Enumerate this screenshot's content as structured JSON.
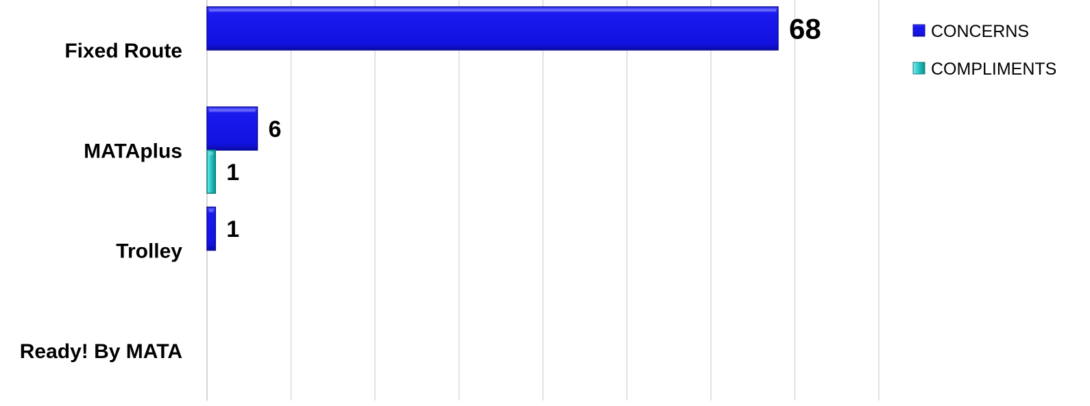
{
  "chart_data": {
    "type": "bar",
    "orientation": "horizontal",
    "categories": [
      "Fixed Route",
      "MATAplus",
      "Trolley",
      "Ready! By MATA"
    ],
    "series": [
      {
        "name": "CONCERNS",
        "values": [
          68,
          6,
          1,
          0
        ],
        "color": "#1212e6"
      },
      {
        "name": "COMPLIMENTS",
        "values": [
          0,
          1,
          0,
          0
        ],
        "color": "#20c8c8"
      }
    ],
    "data_labels": [
      {
        "category": "Fixed Route",
        "series": "CONCERNS",
        "text": "68"
      },
      {
        "category": "MATAplus",
        "series": "CONCERNS",
        "text": "6"
      },
      {
        "category": "MATAplus",
        "series": "COMPLIMENTS",
        "text": "1"
      },
      {
        "category": "Trolley",
        "series": "CONCERNS",
        "text": "1"
      }
    ],
    "xlim": [
      0,
      80
    ],
    "x_major_unit": 10,
    "grid": "vertical",
    "legend_position": "top-right",
    "title": "",
    "xlabel": "",
    "ylabel": ""
  }
}
